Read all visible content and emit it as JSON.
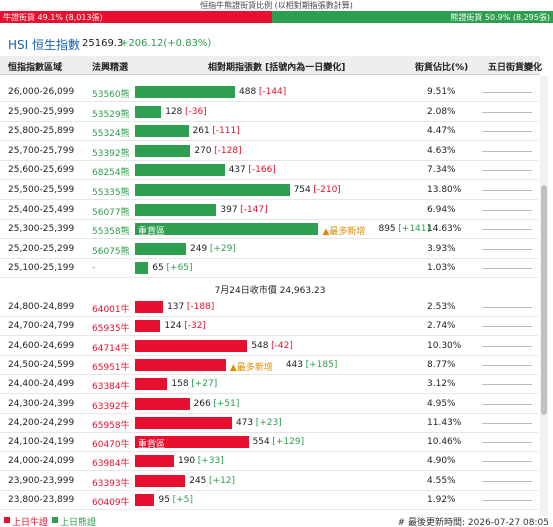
{
  "header": {
    "title": "恒指牛熊證街貨比例 (以相對期指張數計算)",
    "bull_label": "牛證街貨 49.1% (8,013張)",
    "bear_label": "熊證街貨 50.9% (8,295張)",
    "bull_share": 49.1,
    "bear_share": 50.9
  },
  "index": {
    "name": "HSI 恒生指數",
    "value": "25169.3",
    "change": "+206.12(+0.83%)"
  },
  "columns": [
    "恒指指數區域",
    "法興精選",
    "相對期指張數 [括號內為一日變化]",
    "街貨佔比(%)",
    "五日街貨變化"
  ],
  "bear_rows": [
    {
      "range": "26,000-26,099",
      "code": "53560熊",
      "count": 488,
      "change": "[-144]",
      "share": "9.51%"
    },
    {
      "range": "25,900-25,999",
      "code": "53529熊",
      "count": 128,
      "change": "[-36]",
      "share": "2.08%"
    },
    {
      "range": "25,800-25,899",
      "code": "55324熊",
      "count": 261,
      "change": "[-111]",
      "share": "4.47%"
    },
    {
      "range": "25,700-25,799",
      "code": "53392熊",
      "count": 270,
      "change": "[-128]",
      "share": "4.63%"
    },
    {
      "range": "25,600-25,699",
      "code": "68254熊",
      "count": 437,
      "change": "[-166]",
      "share": "7.34%"
    },
    {
      "range": "25,500-25,599",
      "code": "55335熊",
      "count": 754,
      "change": "[-210]",
      "share": "13.80%"
    },
    {
      "range": "25,400-25,499",
      "code": "56077熊",
      "count": 397,
      "change": "[-147]",
      "share": "6.94%"
    },
    {
      "range": "25,300-25,399",
      "code": "55358熊",
      "zone": "重貨區",
      "flag": "▲最多新增",
      "count": 895,
      "change": "[+141]",
      "share": "14.63%"
    },
    {
      "range": "25,200-25,299",
      "code": "56075熊",
      "count": 249,
      "change": "[+29]",
      "share": "3.93%"
    },
    {
      "range": "25,100-25,199",
      "code": "-",
      "count": 65,
      "change": "[+65]",
      "share": "1.03%"
    }
  ],
  "close_label": "7月24日收市價 24,963.23",
  "bull_rows": [
    {
      "range": "24,800-24,899",
      "code": "64001牛",
      "count": 137,
      "change": "[-188]",
      "share": "2.53%"
    },
    {
      "range": "24,700-24,799",
      "code": "65935牛",
      "count": 124,
      "change": "[-32]",
      "share": "2.74%"
    },
    {
      "range": "24,600-24,699",
      "code": "64714牛",
      "count": 548,
      "change": "[-42]",
      "share": "10.30%"
    },
    {
      "range": "24,500-24,599",
      "code": "65951牛",
      "flag": "▲最多新增",
      "count": 443,
      "change": "[+185]",
      "share": "8.77%"
    },
    {
      "range": "24,400-24,499",
      "code": "63384牛",
      "count": 158,
      "change": "[+27]",
      "share": "3.12%"
    },
    {
      "range": "24,300-24,399",
      "code": "63392牛",
      "count": 266,
      "change": "[+51]",
      "share": "4.95%"
    },
    {
      "range": "24,200-24,299",
      "code": "65958牛",
      "count": 473,
      "change": "[+23]",
      "share": "11.43%"
    },
    {
      "range": "24,100-24,199",
      "code": "60470牛",
      "zone": "重貨區",
      "count": 554,
      "change": "[+129]",
      "share": "10.46%"
    },
    {
      "range": "24,000-24,099",
      "code": "63984牛",
      "count": 190,
      "change": "[+33]",
      "share": "4.90%"
    },
    {
      "range": "23,900-23,999",
      "code": "63393牛",
      "count": 245,
      "change": "[+12]",
      "share": "4.55%"
    },
    {
      "range": "23,800-23,899",
      "code": "60409牛",
      "count": 95,
      "change": "[+5]",
      "share": "1.92%"
    }
  ],
  "legend": [
    "上日牛證",
    "上日熊證"
  ],
  "updated": "# 最後更新時間: 2026-07-27 08:05"
}
